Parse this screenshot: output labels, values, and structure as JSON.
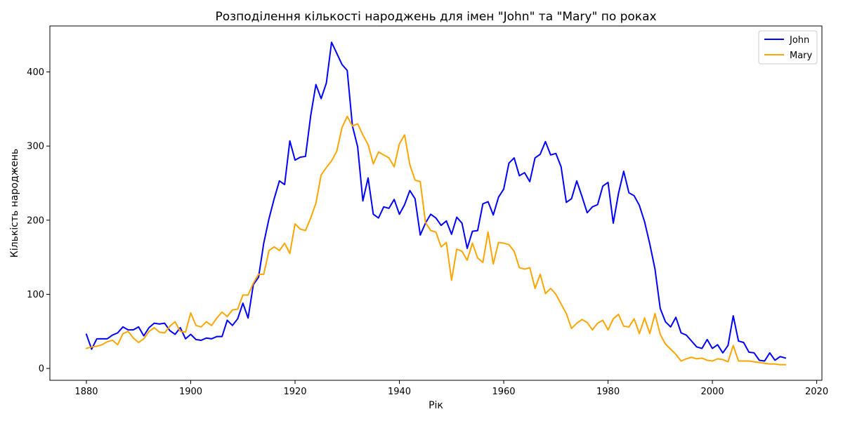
{
  "chart_data": {
    "type": "line",
    "title": "Розподілення кількості народжень для імен \"John\" та \"Mary\" по роках",
    "xlabel": "Рік",
    "ylabel": "Кількість народжень",
    "xlim": [
      1873,
      2021
    ],
    "ylim": [
      -16,
      462
    ],
    "xticks": [
      1880,
      1900,
      1920,
      1940,
      1960,
      1980,
      2000,
      2020
    ],
    "yticks": [
      0,
      100,
      200,
      300,
      400
    ],
    "grid": false,
    "legend_position": "top-right",
    "x": [
      1880,
      1881,
      1882,
      1883,
      1884,
      1885,
      1886,
      1887,
      1888,
      1889,
      1890,
      1891,
      1892,
      1893,
      1894,
      1895,
      1896,
      1897,
      1898,
      1899,
      1900,
      1901,
      1902,
      1903,
      1904,
      1905,
      1906,
      1907,
      1908,
      1909,
      1910,
      1911,
      1912,
      1913,
      1914,
      1915,
      1916,
      1917,
      1918,
      1919,
      1920,
      1921,
      1922,
      1923,
      1924,
      1925,
      1926,
      1927,
      1928,
      1929,
      1930,
      1931,
      1932,
      1933,
      1934,
      1935,
      1936,
      1937,
      1938,
      1939,
      1940,
      1941,
      1942,
      1943,
      1944,
      1945,
      1946,
      1947,
      1948,
      1949,
      1950,
      1951,
      1952,
      1953,
      1954,
      1955,
      1956,
      1957,
      1958,
      1959,
      1960,
      1961,
      1962,
      1963,
      1964,
      1965,
      1966,
      1967,
      1968,
      1969,
      1970,
      1971,
      1972,
      1973,
      1974,
      1975,
      1976,
      1977,
      1978,
      1979,
      1980,
      1981,
      1982,
      1983,
      1984,
      1985,
      1986,
      1987,
      1988,
      1989,
      1990,
      1991,
      1992,
      1993,
      1994,
      1995,
      1996,
      1997,
      1998,
      1999,
      2000,
      2001,
      2002,
      2003,
      2004,
      2005,
      2006,
      2007,
      2008,
      2009,
      2010,
      2011,
      2012,
      2013,
      2014
    ],
    "series": [
      {
        "name": "John",
        "color": "#0000ff",
        "values": [
          46,
          26,
          40,
          40,
          40,
          45,
          48,
          56,
          52,
          52,
          56,
          44,
          55,
          61,
          60,
          61,
          51,
          46,
          55,
          40,
          46,
          39,
          38,
          41,
          40,
          43,
          43,
          65,
          58,
          67,
          88,
          68,
          113,
          123,
          169,
          202,
          229,
          253,
          248,
          307,
          281,
          285,
          286,
          341,
          383,
          364,
          385,
          440,
          425,
          410,
          402,
          327,
          299,
          226,
          257,
          208,
          203,
          218,
          216,
          228,
          208,
          221,
          240,
          229,
          180,
          196,
          208,
          203,
          193,
          199,
          181,
          204,
          196,
          162,
          185,
          186,
          222,
          225,
          207,
          231,
          242,
          277,
          284,
          260,
          264,
          252,
          284,
          289,
          306,
          288,
          290,
          272,
          224,
          229,
          253,
          232,
          210,
          218,
          221,
          246,
          251,
          196,
          236,
          266,
          237,
          233,
          220,
          198,
          168,
          134,
          81,
          63,
          56,
          69,
          48,
          45,
          37,
          29,
          27,
          39,
          27,
          32,
          21,
          31,
          71,
          37,
          35,
          22,
          21,
          11,
          10,
          21,
          11,
          16,
          14
        ]
      },
      {
        "name": "Mary",
        "color": "#ffa500",
        "values": [
          27,
          29,
          30,
          32,
          36,
          38,
          32,
          47,
          50,
          41,
          35,
          40,
          50,
          55,
          49,
          48,
          57,
          63,
          50,
          49,
          75,
          58,
          56,
          63,
          58,
          68,
          76,
          70,
          79,
          80,
          99,
          99,
          115,
          127,
          127,
          159,
          164,
          159,
          169,
          155,
          195,
          188,
          186,
          203,
          223,
          261,
          271,
          280,
          293,
          325,
          340,
          327,
          330,
          315,
          302,
          276,
          292,
          288,
          284,
          272,
          303,
          315,
          275,
          254,
          252,
          197,
          186,
          184,
          164,
          170,
          119,
          161,
          158,
          146,
          169,
          149,
          143,
          184,
          141,
          170,
          169,
          167,
          158,
          136,
          134,
          136,
          108,
          127,
          101,
          108,
          100,
          87,
          74,
          54,
          61,
          66,
          62,
          52,
          61,
          65,
          52,
          67,
          73,
          57,
          56,
          67,
          47,
          68,
          47,
          74,
          46,
          33,
          26,
          19,
          10,
          13,
          15,
          13,
          14,
          11,
          10,
          13,
          12,
          9,
          31,
          10,
          10,
          10,
          9,
          8,
          7,
          6,
          6,
          5,
          5
        ]
      }
    ]
  }
}
